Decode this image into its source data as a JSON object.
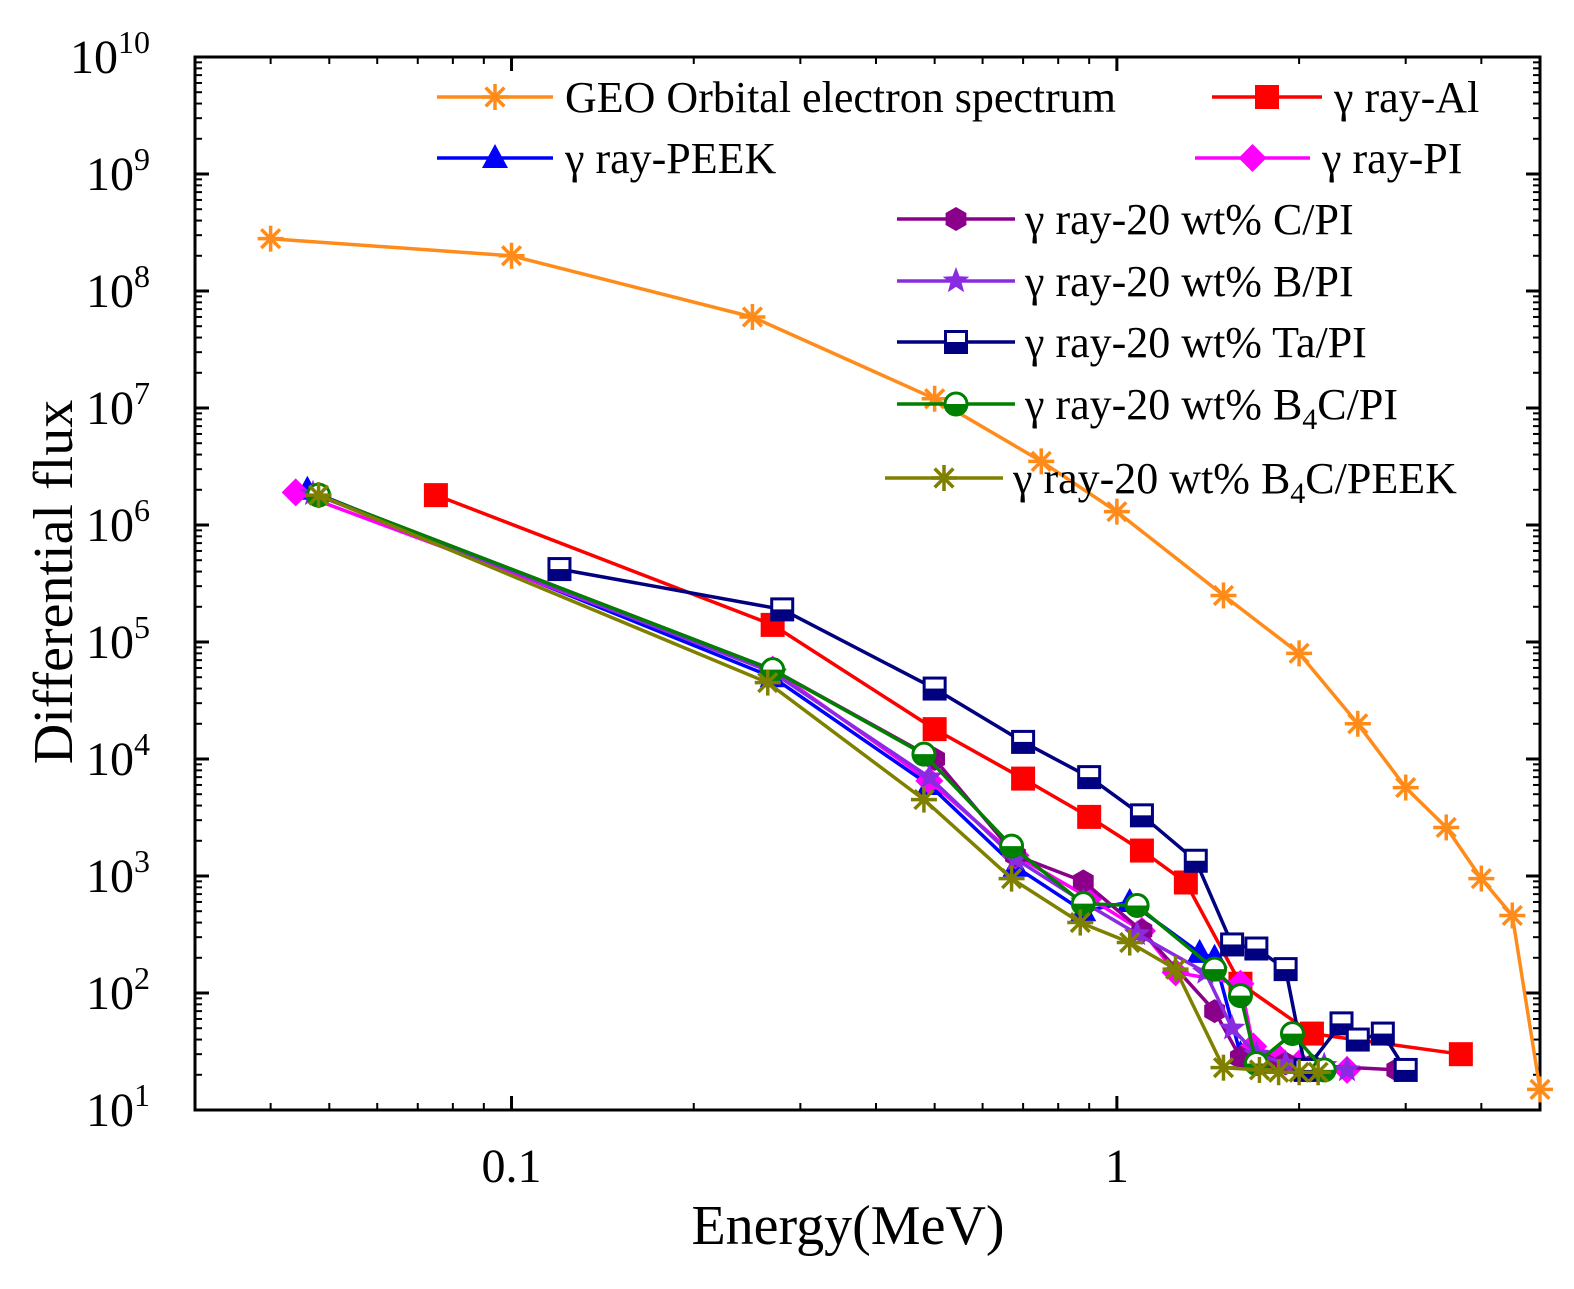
{
  "chart_data": {
    "type": "line",
    "xscale": "log",
    "yscale": "log",
    "xlabel": "Energy(MeV)",
    "ylabel": "Differential flux",
    "xlim": [
      0.03,
      5.0
    ],
    "ylim": [
      10,
      10000000000
    ],
    "x_ticks": [
      {
        "value": 0.1,
        "label": "0.1"
      },
      {
        "value": 1,
        "label": "1"
      }
    ],
    "y_ticks": [
      {
        "value": 10,
        "base": "10",
        "exp": "1"
      },
      {
        "value": 100,
        "base": "10",
        "exp": "2"
      },
      {
        "value": 1000,
        "base": "10",
        "exp": "3"
      },
      {
        "value": 10000,
        "base": "10",
        "exp": "4"
      },
      {
        "value": 100000,
        "base": "10",
        "exp": "5"
      },
      {
        "value": 1000000,
        "base": "10",
        "exp": "6"
      },
      {
        "value": 10000000,
        "base": "10",
        "exp": "7"
      },
      {
        "value": 100000000,
        "base": "10",
        "exp": "8"
      },
      {
        "value": 1000000000,
        "base": "10",
        "exp": "9"
      },
      {
        "value": 10000000000,
        "base": "10",
        "exp": "10"
      }
    ],
    "series": [
      {
        "name": "GEO Orbital electron spectrum",
        "legend_prefix": "",
        "legend_main": "GEO Orbital electron spectrum",
        "legend_sub": "",
        "legend_suffix": "",
        "color": "#FF8C1A",
        "marker": "asterisk",
        "x": [
          0.04,
          0.1,
          0.25,
          0.5,
          0.75,
          1.0,
          1.5,
          2.0,
          2.5,
          3.0,
          3.5,
          4.0,
          4.5,
          5.0
        ],
        "y": [
          280000000,
          200000000,
          60000000,
          12000000,
          3500000,
          1300000,
          250000,
          80000,
          20000,
          5700,
          2600,
          950,
          460,
          15
        ]
      },
      {
        "name": "γ ray-Al",
        "legend_prefix": "γ ",
        "legend_main": "ray-Al",
        "legend_sub": "",
        "legend_suffix": "",
        "color": "#FF0000",
        "marker": "square",
        "x": [
          0.075,
          0.27,
          0.5,
          0.7,
          0.9,
          1.1,
          1.3,
          1.6,
          2.1,
          3.7
        ],
        "y": [
          1800000,
          140000,
          18000,
          6800,
          3200,
          1650,
          880,
          120,
          45,
          30
        ]
      },
      {
        "name": "γ ray-PEEK",
        "legend_prefix": "γ ",
        "legend_main": "ray-PEEK",
        "legend_sub": "",
        "legend_suffix": "",
        "color": "#0000FF",
        "marker": "triangle",
        "x": [
          0.046,
          0.27,
          0.49,
          0.68,
          0.88,
          1.05,
          1.37,
          1.45,
          1.6,
          2.0
        ],
        "y": [
          2000000,
          50000,
          6000,
          1200,
          500,
          600,
          220,
          200,
          30,
          25
        ]
      },
      {
        "name": "γ ray-PI",
        "legend_prefix": "γ ",
        "legend_main": "ray-PI",
        "legend_sub": "",
        "legend_suffix": "",
        "color": "#FF00FF",
        "marker": "diamond",
        "x": [
          0.044,
          0.27,
          0.49,
          0.68,
          0.9,
          1.1,
          1.25,
          1.6,
          1.68,
          1.85,
          2.0,
          2.4
        ],
        "y": [
          1900000,
          58000,
          6500,
          1500,
          650,
          340,
          150,
          120,
          35,
          28,
          25,
          22
        ]
      },
      {
        "name": "γ ray-20 wt% C/PI",
        "legend_prefix": "γ ",
        "legend_main": "ray-20 wt% C/PI",
        "legend_sub": "",
        "legend_suffix": "",
        "color": "#8B008B",
        "marker": "hexagon",
        "x": [
          0.048,
          0.27,
          0.5,
          0.68,
          0.88,
          1.1,
          1.45,
          1.6,
          1.75,
          1.9,
          2.1,
          2.9
        ],
        "y": [
          1800000,
          58000,
          10000,
          1500,
          900,
          340,
          70,
          28,
          25,
          25,
          24,
          22
        ]
      },
      {
        "name": "γ ray-20 wt% B/PI",
        "legend_prefix": "γ ",
        "legend_main": "ray-20 wt% B/PI",
        "legend_sub": "",
        "legend_suffix": "",
        "color": "#8A2BE2",
        "marker": "star",
        "x": [
          0.047,
          0.27,
          0.49,
          0.68,
          0.88,
          1.08,
          1.4,
          1.55,
          1.7,
          1.9,
          2.2,
          2.4
        ],
        "y": [
          1850000,
          55000,
          7000,
          1400,
          600,
          320,
          150,
          50,
          30,
          25,
          24,
          22
        ]
      },
      {
        "name": "γ ray-20 wt% Ta/PI",
        "legend_prefix": "γ ",
        "legend_main": "ray-20 wt% Ta/PI",
        "legend_sub": "",
        "legend_suffix": "",
        "color": "#000080",
        "marker": "half-square",
        "x": [
          0.12,
          0.28,
          0.5,
          0.7,
          0.9,
          1.1,
          1.35,
          1.55,
          1.7,
          1.9,
          2.05,
          2.35,
          2.5,
          2.75,
          3.0
        ],
        "y": [
          420000,
          190000,
          40000,
          14000,
          7000,
          3300,
          1350,
          260,
          240,
          160,
          22,
          55,
          40,
          45,
          22
        ]
      },
      {
        "name": "γ ray-20 wt% B4C/PI",
        "legend_prefix": "γ ",
        "legend_main": "ray-20 wt% B",
        "legend_sub": "4",
        "legend_suffix": "C/PI",
        "color": "#008000",
        "marker": "half-circle",
        "x": [
          0.048,
          0.27,
          0.48,
          0.67,
          0.88,
          1.08,
          1.45,
          1.6,
          1.7,
          1.95,
          2.2
        ],
        "y": [
          1800000,
          58000,
          11000,
          1800,
          580,
          560,
          160,
          95,
          25,
          45,
          22
        ]
      },
      {
        "name": "γ ray-20 wt% B4C/PEEK",
        "legend_prefix": "γ ",
        "legend_main": "ray-20 wt% B",
        "legend_sub": "4",
        "legend_suffix": "C/PEEK",
        "color": "#808000",
        "marker": "asterisk",
        "x": [
          0.048,
          0.265,
          0.48,
          0.67,
          0.87,
          1.05,
          1.25,
          1.5,
          1.72,
          1.85,
          2.0,
          2.15
        ],
        "y": [
          1800000,
          45000,
          4500,
          950,
          400,
          270,
          160,
          23,
          22,
          21,
          21,
          21
        ]
      }
    ]
  }
}
